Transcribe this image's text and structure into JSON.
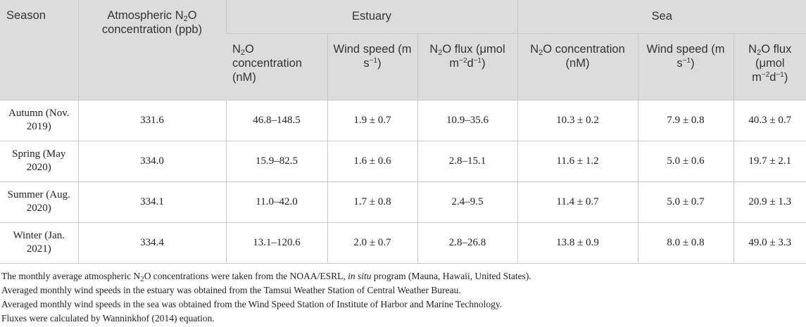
{
  "header": {
    "season": "Season",
    "atm_pre": "Atmospheric N",
    "atm_sub": "2",
    "atm_post": "O concentration (ppb)",
    "estuary": "Estuary",
    "sea": "Sea",
    "conc_pre": "N",
    "conc_sub": "2",
    "conc_post": "O concentration (nM)",
    "wind_pre": "Wind speed (m s",
    "wind_sup": "−1",
    "wind_post": ")",
    "flux_pre": "N",
    "flux_sub": "2",
    "flux_mid": "O flux (μmol m",
    "flux_sup1": "−2",
    "flux_d": "d",
    "flux_sup2": "−1",
    "flux_post": ")"
  },
  "rows": [
    {
      "season": "Autumn (Nov. 2019)",
      "atm": "331.6",
      "est_conc": "46.8–148.5",
      "est_wind": "1.9 ± 0.7",
      "est_flux": "10.9–35.6",
      "sea_conc": "10.3 ± 0.2",
      "sea_wind": "7.9 ± 0.8",
      "sea_flux": "40.3 ± 0.7"
    },
    {
      "season": "Spring (May 2020)",
      "atm": "334.0",
      "est_conc": "15.9–82.5",
      "est_wind": "1.6 ± 0.6",
      "est_flux": "2.8–15.1",
      "sea_conc": "11.6 ± 1.2",
      "sea_wind": "5.0 ± 0.6",
      "sea_flux": "19.7 ± 2.1"
    },
    {
      "season": "Summer (Aug. 2020)",
      "atm": "334.1",
      "est_conc": "11.0–42.0",
      "est_wind": "1.7 ± 0.8",
      "est_flux": "2.4–9.5",
      "sea_conc": "11.4 ± 0.7",
      "sea_wind": "5.0 ± 0.7",
      "sea_flux": "20.9 ± 1.3"
    },
    {
      "season": "Winter (Jan. 2021)",
      "atm": "334.4",
      "est_conc": "13.1–120.6",
      "est_wind": "2.0 ± 0.7",
      "est_flux": "2.8–26.8",
      "sea_conc": "13.8 ± 0.9",
      "sea_wind": "8.0 ± 0.8",
      "sea_flux": "49.0 ± 3.3"
    }
  ],
  "notes": {
    "n1_a": "The monthly average atmospheric N",
    "n1_sub": "2",
    "n1_b": "O concentrations were taken from the NOAA/ESRL, ",
    "n1_italic": "in situ",
    "n1_c": " program (Mauna, Hawaii, United States).",
    "n2": "Averaged monthly wind speeds in the estuary was obtained from the Tamsui Weather Station of Central Weather Bureau.",
    "n3": "Averaged monthly wind speeds in the sea was obtained from the Wind Speed Station of Institute of Harbor and Marine Technology.",
    "n4": "Fluxes were calculated by Wanninkhof (2014) equation."
  }
}
